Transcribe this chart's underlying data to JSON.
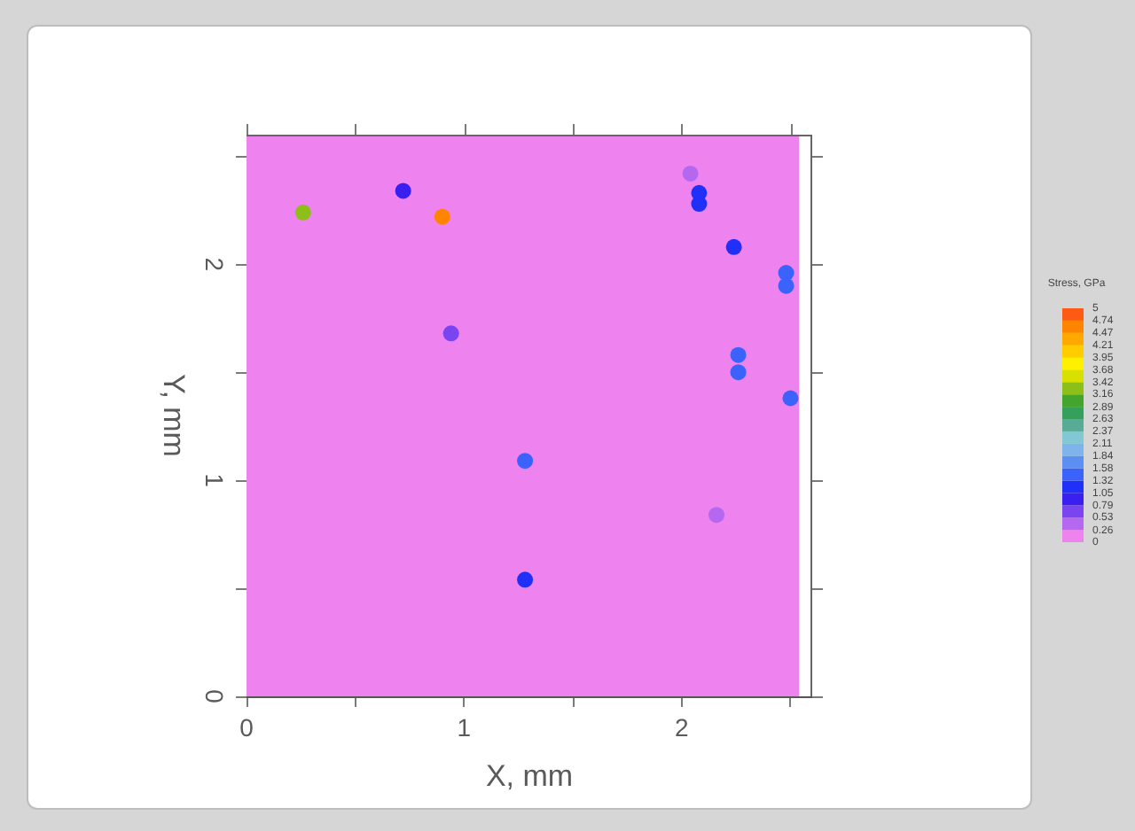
{
  "chart_data": {
    "type": "scatter",
    "xlabel": "X, mm",
    "ylabel": "Y, mm",
    "clabel": "Stress, GPa",
    "x": [
      0.26,
      0.72,
      0.9,
      2.04,
      2.08,
      2.08,
      2.24,
      2.48,
      2.48,
      2.26,
      2.26,
      2.5,
      0.94,
      1.28,
      2.16,
      1.28
    ],
    "values": [
      2.24,
      2.34,
      2.22,
      2.42,
      2.33,
      2.28,
      2.08,
      1.96,
      1.9,
      1.58,
      1.5,
      1.38,
      1.68,
      1.09,
      0.84,
      0.54
    ],
    "cvalues": [
      3.3,
      1.0,
      4.6,
      0.3,
      1.2,
      1.2,
      1.2,
      1.5,
      1.5,
      1.5,
      1.5,
      1.5,
      0.7,
      1.5,
      0.4,
      1.1
    ],
    "marker": "circle",
    "xlim": [
      0,
      2.6
    ],
    "ylim": [
      0,
      2.6
    ],
    "xticks": [
      0,
      {
        "value": 0.5,
        "label": null
      },
      1,
      {
        "value": 1.5,
        "label": null
      },
      2,
      {
        "value": 2.5,
        "label": null
      }
    ],
    "yticks": [
      0,
      {
        "value": 0.5,
        "label": null
      },
      1,
      {
        "value": 1.5,
        "label": null
      },
      2,
      {
        "value": 2.5,
        "label": null
      }
    ],
    "clim": [
      0,
      5
    ],
    "cticks": [
      0,
      0.26,
      0.53,
      0.79,
      1.05,
      1.32,
      1.58,
      1.84,
      2.11,
      2.37,
      2.63,
      2.89,
      3.16,
      3.42,
      3.68,
      3.95,
      4.21,
      4.47,
      4.74,
      5
    ],
    "bands": [
      {
        "axis": "x",
        "from": 0,
        "to": 2.54,
        "color": "#ee82ee"
      }
    ]
  }
}
